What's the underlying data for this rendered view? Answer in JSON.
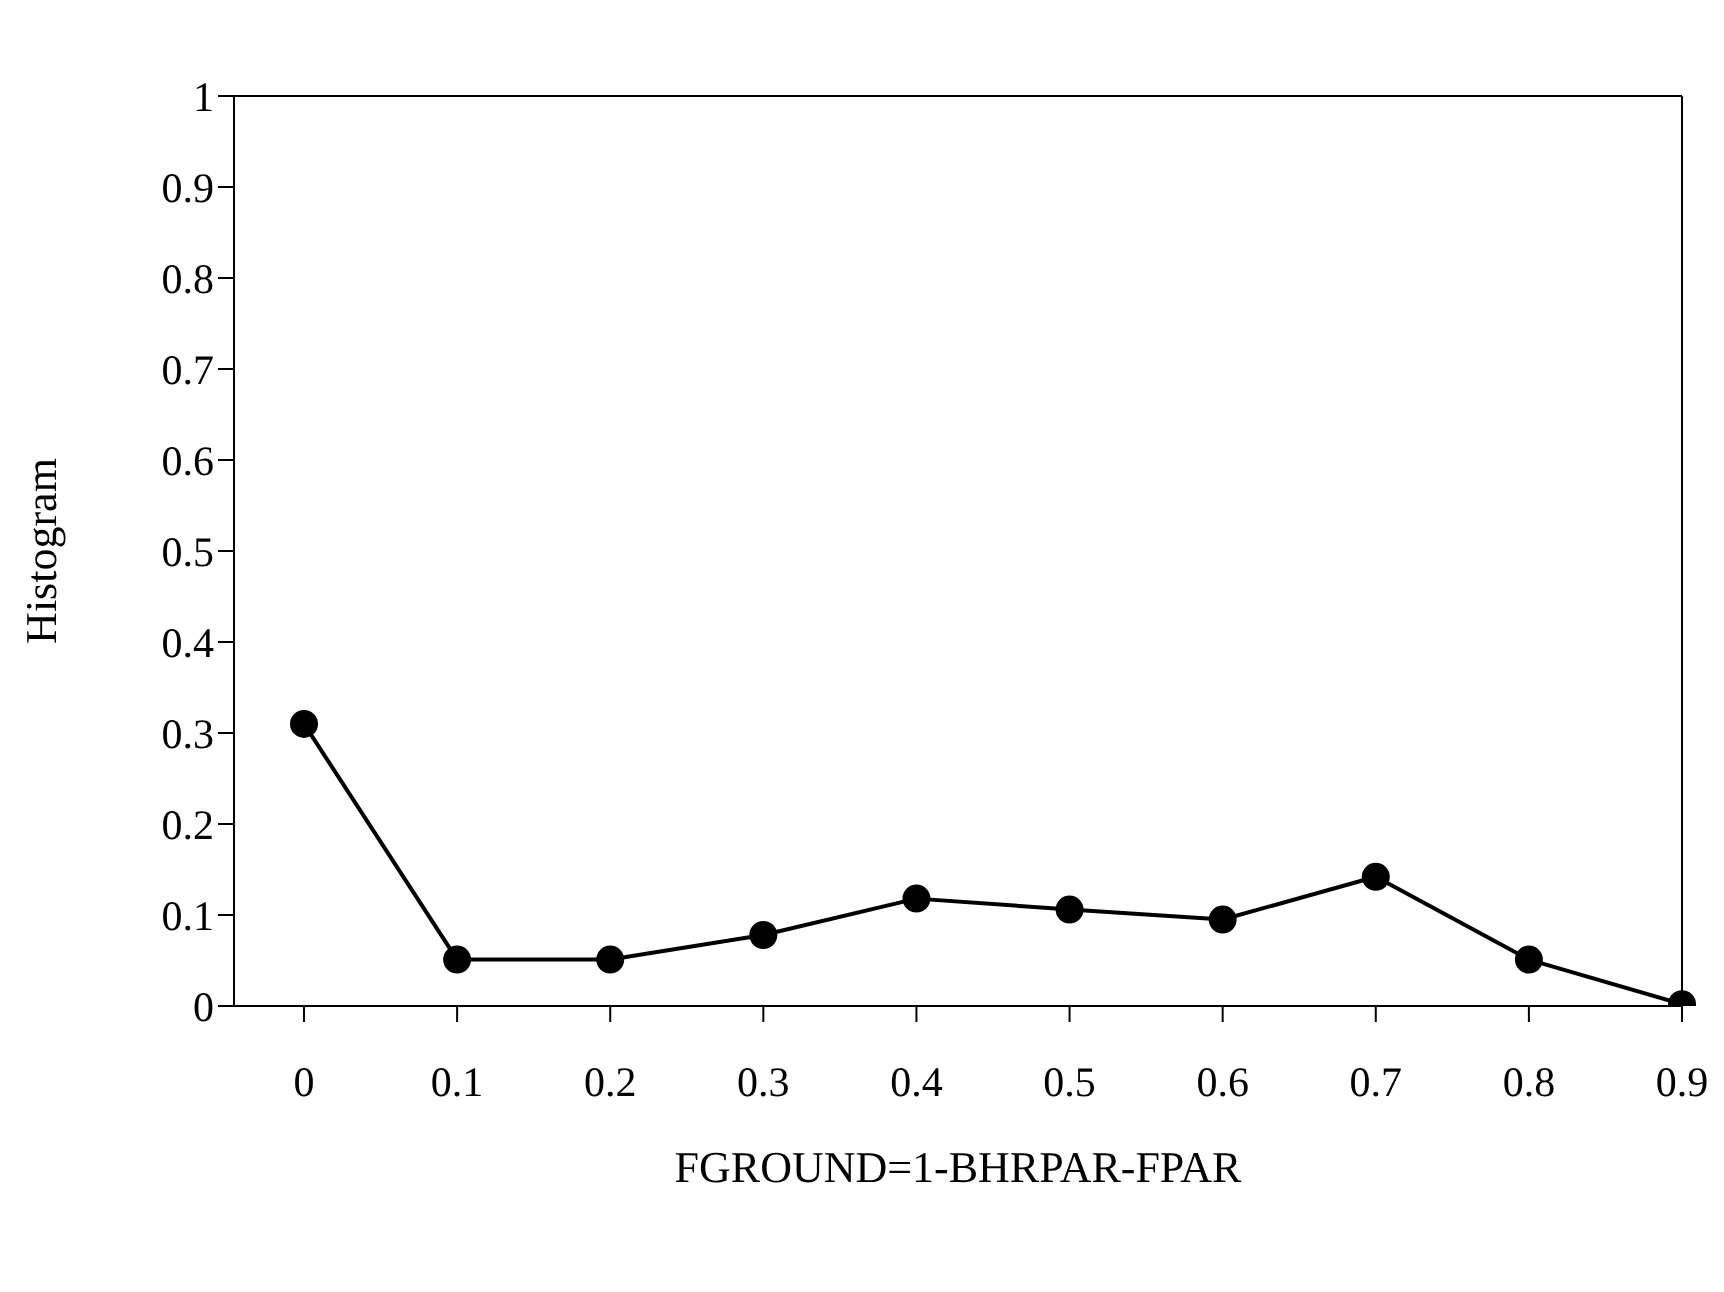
{
  "chart_data": {
    "type": "line",
    "xlabel": "FGROUND=1-BHRPAR-FPAR",
    "ylabel": "Histogram",
    "categories": [
      "0",
      "0.1",
      "0.2",
      "0.3",
      "0.4",
      "0.5",
      "0.6",
      "0.7",
      "0.8",
      "0.9"
    ],
    "series": [
      {
        "color": "#000000",
        "values": [
          0.31,
          0.051,
          0.051,
          0.078,
          0.118,
          0.106,
          0.095,
          0.142,
          0.051,
          0.002
        ]
      }
    ],
    "ylim": [
      0,
      1
    ],
    "yticks": [
      0,
      0.1,
      0.2,
      0.3,
      0.4,
      0.5,
      0.6,
      0.7,
      0.8,
      0.9,
      1
    ],
    "grid": false,
    "legend": false,
    "marker": "circle",
    "line_style": "solid"
  }
}
